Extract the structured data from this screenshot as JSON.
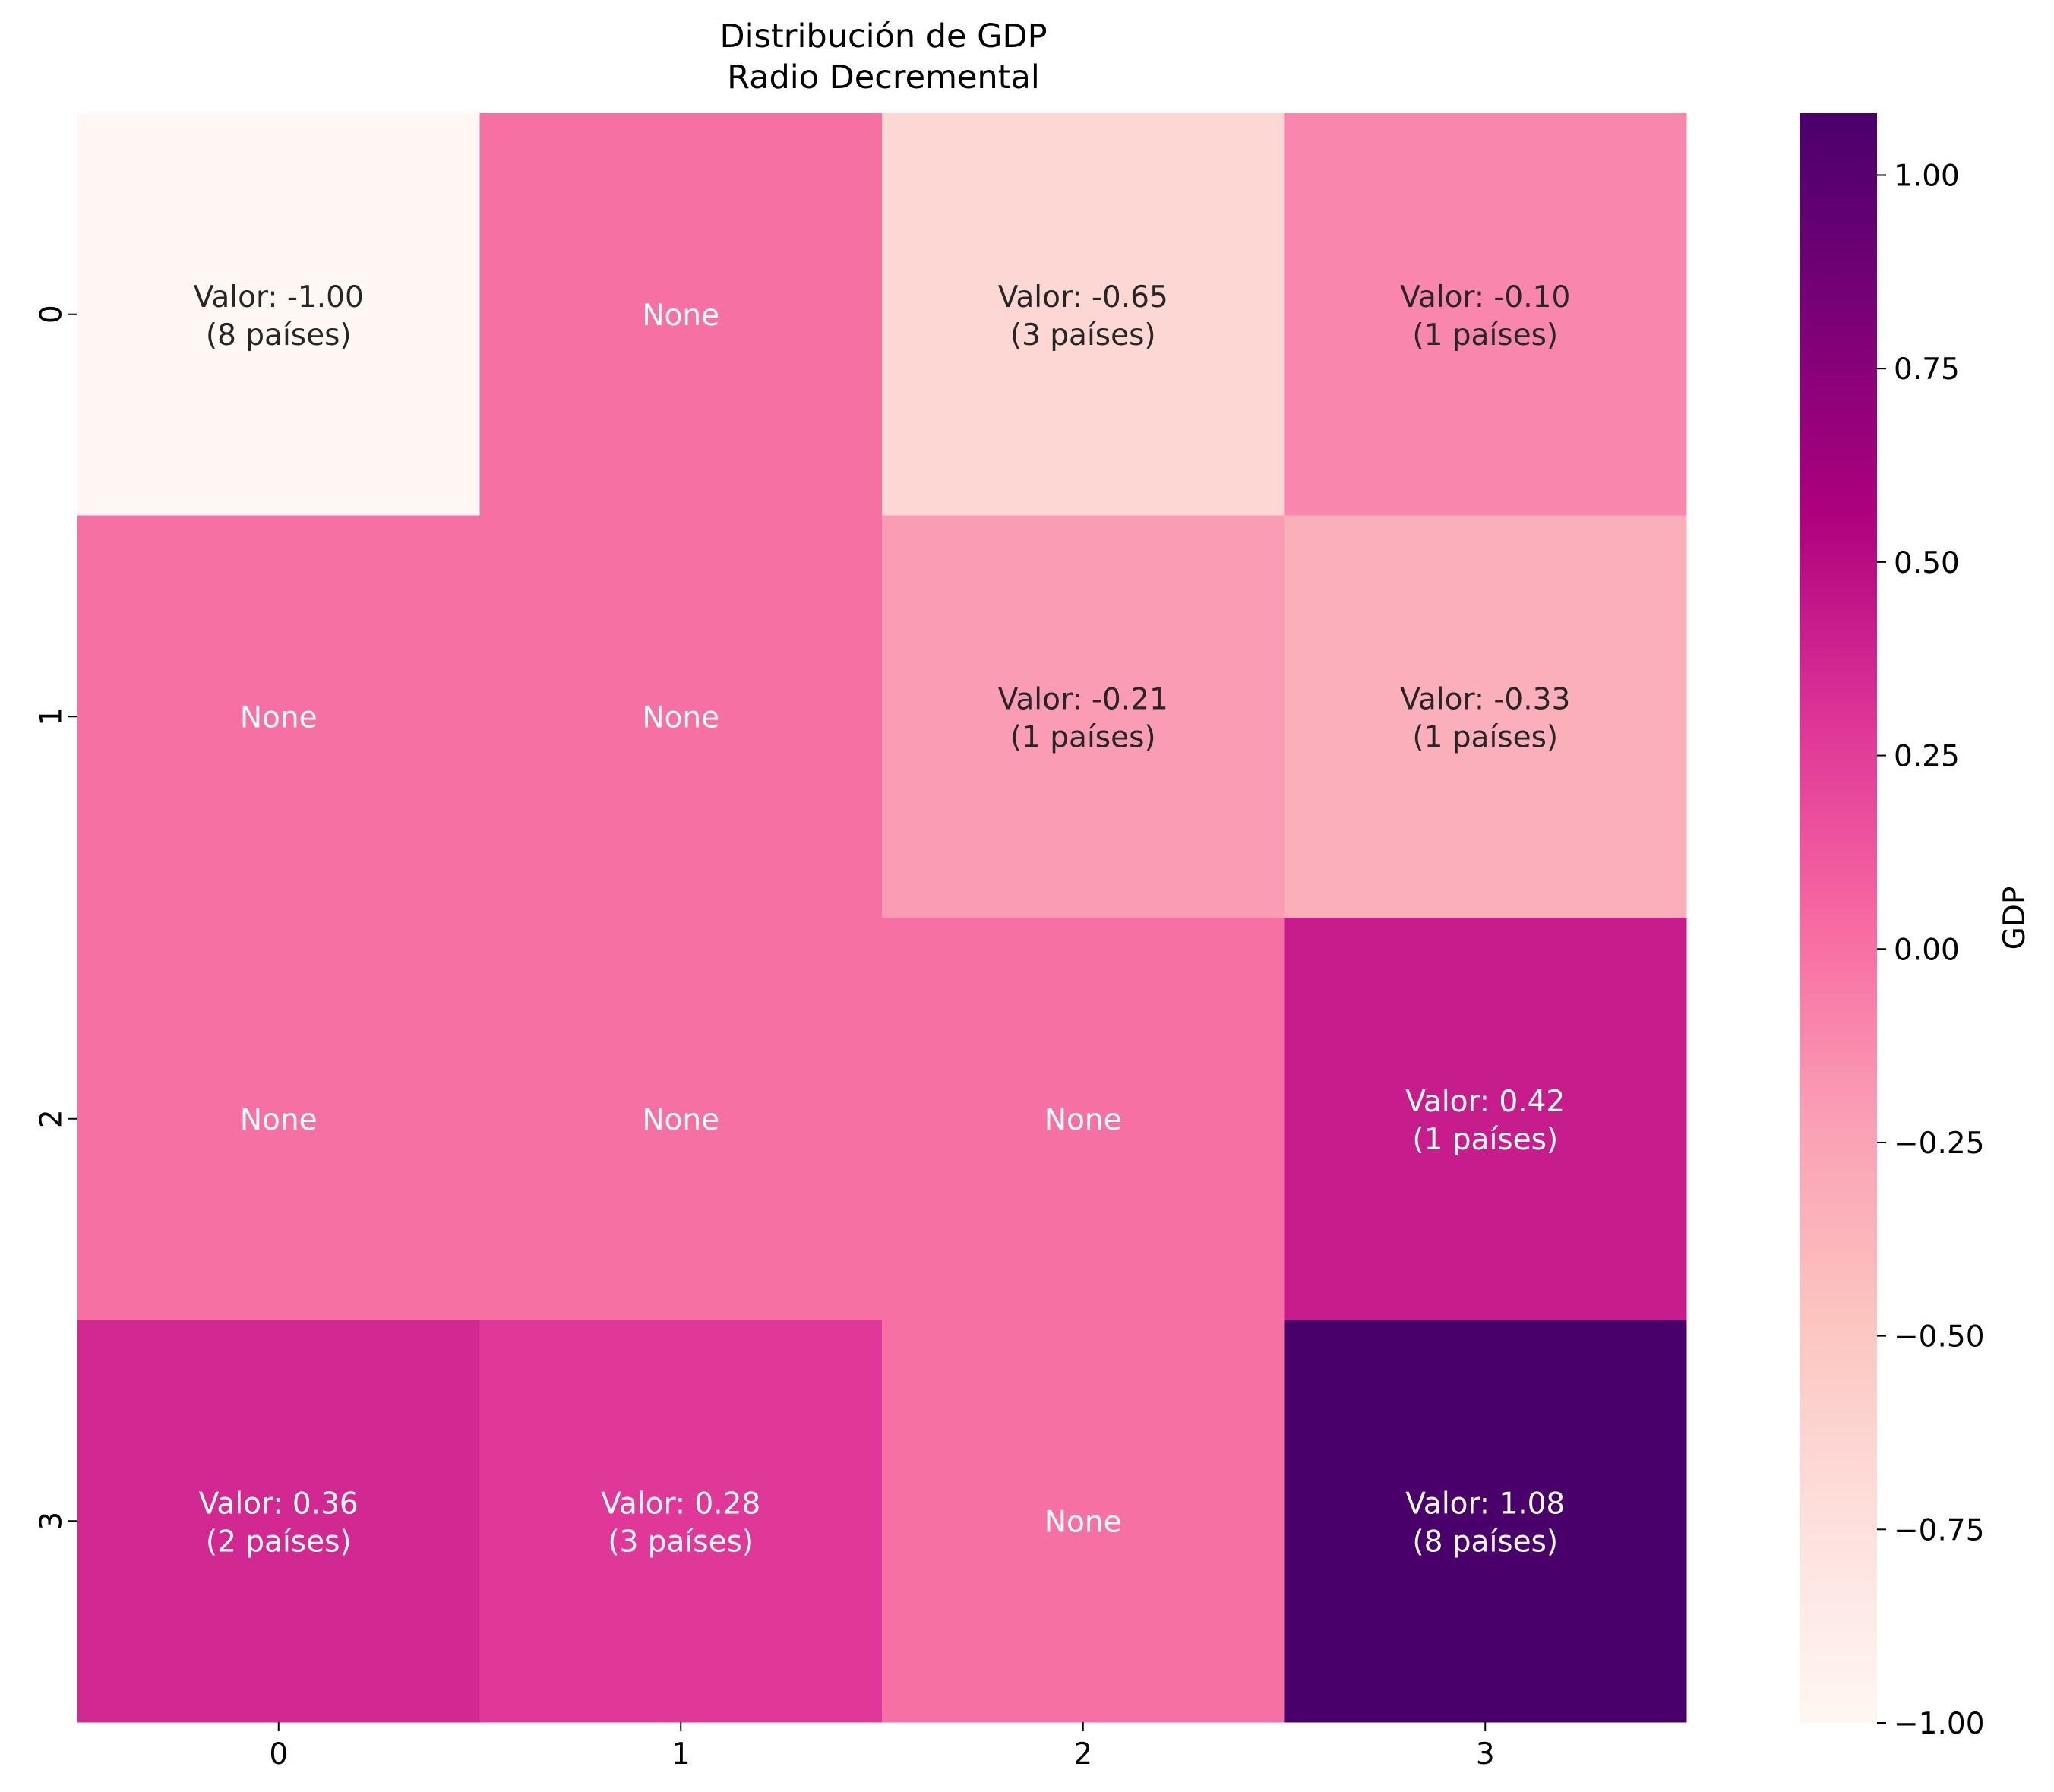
{
  "chart_data": {
    "type": "heatmap",
    "title": "Distribución de GDP",
    "subtitle": "Radio Decremental",
    "row_labels": [
      "0",
      "1",
      "2",
      "3"
    ],
    "col_labels": [
      "0",
      "1",
      "2",
      "3"
    ],
    "cells": [
      [
        {
          "value": -1.0,
          "label_line1": "Valor: -1.00",
          "label_line2": "(8 países)"
        },
        {
          "value": 0.0,
          "label_line1": "None",
          "label_line2": ""
        },
        {
          "value": -0.65,
          "label_line1": "Valor: -0.65",
          "label_line2": "(3 países)"
        },
        {
          "value": -0.1,
          "label_line1": "Valor: -0.10",
          "label_line2": "(1 países)"
        }
      ],
      [
        {
          "value": 0.0,
          "label_line1": "None",
          "label_line2": ""
        },
        {
          "value": 0.0,
          "label_line1": "None",
          "label_line2": ""
        },
        {
          "value": -0.21,
          "label_line1": "Valor: -0.21",
          "label_line2": "(1 países)"
        },
        {
          "value": -0.33,
          "label_line1": "Valor: -0.33",
          "label_line2": "(1 países)"
        }
      ],
      [
        {
          "value": 0.0,
          "label_line1": "None",
          "label_line2": ""
        },
        {
          "value": 0.0,
          "label_line1": "None",
          "label_line2": ""
        },
        {
          "value": 0.0,
          "label_line1": "None",
          "label_line2": ""
        },
        {
          "value": 0.42,
          "label_line1": "Valor: 0.42",
          "label_line2": "(1 países)"
        }
      ],
      [
        {
          "value": 0.36,
          "label_line1": "Valor: 0.36",
          "label_line2": "(2 países)"
        },
        {
          "value": 0.28,
          "label_line1": "Valor: 0.28",
          "label_line2": "(3 países)"
        },
        {
          "value": 0.0,
          "label_line1": "None",
          "label_line2": ""
        },
        {
          "value": 1.08,
          "label_line1": "Valor: 1.08",
          "label_line2": "(8 países)"
        }
      ]
    ],
    "colorbar": {
      "label": "GDP",
      "range": [
        -1.0,
        1.08
      ],
      "ticks": [
        "1.00",
        "0.75",
        "0.50",
        "0.25",
        "0.00",
        "−0.25",
        "−0.50",
        "−0.75",
        "−1.00"
      ],
      "tick_values": [
        1.0,
        0.75,
        0.5,
        0.25,
        0.0,
        -0.25,
        -0.5,
        -0.75,
        -1.0
      ],
      "colormap": "RdPu",
      "color_stops": [
        "#fff7f3",
        "#fde0dd",
        "#fcc5c0",
        "#fa9fb5",
        "#f768a1",
        "#dd3497",
        "#ae017e",
        "#7a0177",
        "#49006a"
      ]
    },
    "text_colors": {
      "dark": "#262626",
      "light": "#ffffff"
    }
  }
}
